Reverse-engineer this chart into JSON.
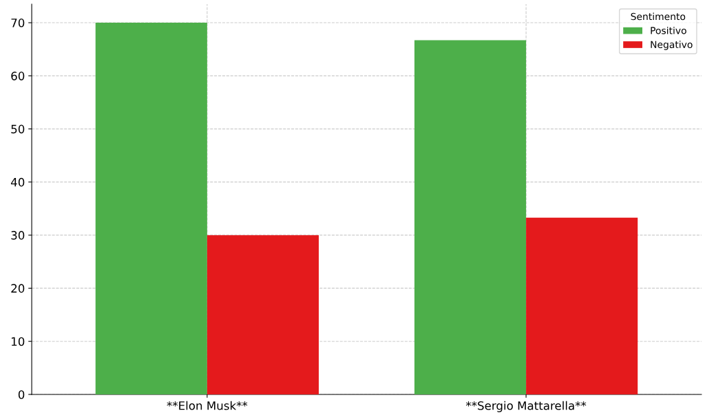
{
  "chart_data": {
    "type": "bar",
    "categories": [
      "**Elon Musk**",
      "**Sergio Mattarella**"
    ],
    "series": [
      {
        "name": "Positivo",
        "color": "#4daf4a",
        "values": [
          70,
          66.7
        ]
      },
      {
        "name": "Negativo",
        "color": "#e41a1c",
        "values": [
          30,
          33.3
        ]
      }
    ],
    "legend_title": "Sentimento",
    "legend": "top right",
    "grid": true,
    "ylim": [
      0,
      73.5
    ],
    "yticks": [
      0,
      10,
      20,
      30,
      40,
      50,
      60,
      70
    ]
  }
}
